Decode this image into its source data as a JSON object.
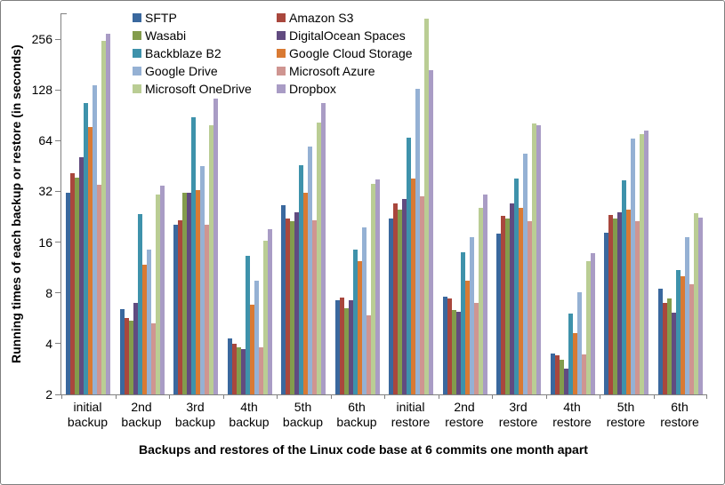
{
  "chart_data": {
    "type": "bar",
    "scale": "log2",
    "title": "",
    "xlabel": "Backups and restores of the Linux code base at 6 commits one month apart",
    "ylabel": "Running times of each backup or restore (in seconds)",
    "yticks": [
      2,
      4,
      8,
      16,
      32,
      64,
      128,
      256
    ],
    "ylim": [
      2,
      380
    ],
    "grid": false,
    "legend_position": "top-center, 2 columns",
    "categories": [
      "initial backup",
      "2nd backup",
      "3rd backup",
      "4th backup",
      "5th backup",
      "6th backup",
      "initial restore",
      "2nd restore",
      "3rd restore",
      "4th restore",
      "5th restore",
      "6th restore"
    ],
    "series": [
      {
        "name": "SFTP",
        "color": "#3a689e",
        "values": [
          31.5,
          6.4,
          20.4,
          4.3,
          26.5,
          7.2,
          22,
          7.6,
          18,
          3.5,
          18.3,
          8.5
        ]
      },
      {
        "name": "Amazon S3",
        "color": "#a9473d",
        "values": [
          41,
          5.7,
          21.7,
          4.0,
          22.2,
          7.5,
          27.3,
          7.4,
          22.8,
          3.4,
          23.3,
          7.0
        ]
      },
      {
        "name": "Wasabi",
        "color": "#839c4c",
        "values": [
          38.5,
          5.5,
          31.6,
          3.8,
          21.2,
          6.5,
          25.1,
          6.3,
          22.2,
          3.2,
          22.0,
          7.4
        ]
      },
      {
        "name": "DigitalOcean Spaces",
        "color": "#614b80",
        "values": [
          51,
          7.0,
          31.6,
          3.7,
          24.2,
          7.2,
          29,
          6.2,
          27,
          2.85,
          24.2,
          6.1
        ]
      },
      {
        "name": "Backblaze B2",
        "color": "#3e92ab",
        "values": [
          107,
          23.6,
          88,
          13.2,
          46,
          14.4,
          67,
          14,
          38.3,
          6.0,
          37.4,
          10.9
        ]
      },
      {
        "name": "Google Cloud Storage",
        "color": "#d97a33",
        "values": [
          77,
          11.7,
          32.7,
          6.8,
          31.6,
          12.4,
          38.3,
          9.5,
          25.6,
          4.6,
          25.1,
          10.1
        ]
      },
      {
        "name": "Google Drive",
        "color": "#95b1d4",
        "values": [
          137,
          14.4,
          45,
          9.5,
          59,
          19.5,
          130,
          17.2,
          53.7,
          8.1,
          66,
          17.2
        ]
      },
      {
        "name": "Microsoft Azure",
        "color": "#cf9591",
        "values": [
          35,
          5.3,
          20.4,
          3.8,
          21.7,
          5.9,
          30,
          7.0,
          21.2,
          3.45,
          21.4,
          9.0
        ]
      },
      {
        "name": "Microsoft OneDrive",
        "color": "#bacd94",
        "values": [
          250,
          30.8,
          79,
          16.4,
          82,
          35.6,
          340,
          25.7,
          81,
          12.4,
          70,
          23.9
        ]
      },
      {
        "name": "Dropbox",
        "color": "#a99cc5",
        "values": [
          275,
          34.7,
          114,
          19,
          107,
          37.8,
          168,
          30.8,
          79,
          13.7,
          73.5,
          22.5
        ]
      }
    ]
  },
  "axis_color": "#808080",
  "border_color": "#7f7f7f"
}
